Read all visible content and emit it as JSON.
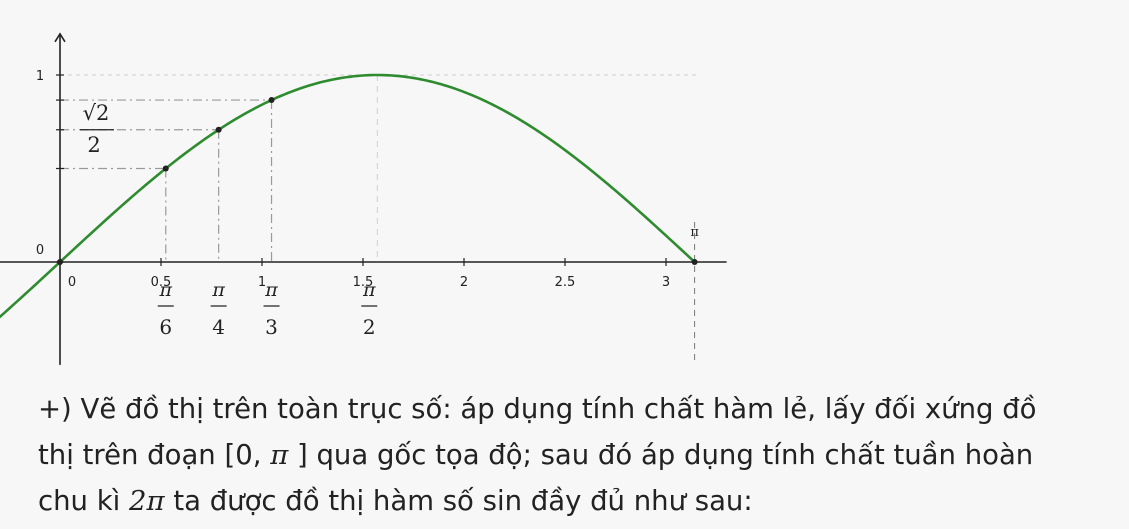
{
  "chart_data": {
    "type": "line",
    "function": "sin(x)",
    "x_range": [
      -0.3,
      3.1416
    ],
    "xlim": [
      -0.3,
      3.3
    ],
    "ylim": [
      -0.55,
      1.22
    ],
    "series": [
      {
        "color": "#2e8b2e"
      }
    ],
    "x_ticks": [
      {
        "value": 0,
        "label": "0"
      },
      {
        "value": 0.5,
        "label": "0.5"
      },
      {
        "value": 1,
        "label": "1"
      },
      {
        "value": 1.5,
        "label": "1.5"
      },
      {
        "value": 2,
        "label": "2"
      },
      {
        "value": 2.5,
        "label": "2.5"
      },
      {
        "value": 3,
        "label": "3"
      }
    ],
    "y_ticks": [
      {
        "value": 0,
        "label": "0"
      },
      {
        "value": 1,
        "label": "1"
      }
    ],
    "pi_labels": [
      {
        "value": 0.5236,
        "num": "π",
        "den": "6"
      },
      {
        "value": 0.7854,
        "num": "π",
        "den": "4"
      },
      {
        "value": 1.0472,
        "num": "π",
        "den": "3"
      },
      {
        "value": 1.5708,
        "num": "π",
        "den": "2"
      }
    ],
    "pi_end_label": {
      "value": 3.1416,
      "text": "π"
    },
    "marked_points": [
      {
        "x": 0,
        "y": 0
      },
      {
        "x": 0.5236,
        "y": 0.5
      },
      {
        "x": 0.7854,
        "y": 0.7071
      },
      {
        "x": 1.0472,
        "y": 0.866
      },
      {
        "x": 3.1416,
        "y": 0
      }
    ],
    "y_annotation": {
      "value": 0.7071,
      "num": "√2",
      "den": "2"
    },
    "grid": false,
    "colors": {
      "curve": "#2e8b2e",
      "axis": "#222222",
      "guide": "#9a9a9a"
    }
  },
  "paragraph": {
    "line1": "+) Vẽ đồ thị trên toàn trục số: áp dụng tính chất hàm lẻ, lấy đối xứng đồ",
    "line2_a": "thị trên đoạn [0, ",
    "line2_pi": "π",
    "line2_b": " ] qua gốc tọa độ; sau đó áp dụng tính chất tuần hoàn",
    "line3_a": "chu kì ",
    "line3_math": "2π",
    "line3_b": " ta được đồ thị hàm số sin đầy đủ như sau:"
  }
}
